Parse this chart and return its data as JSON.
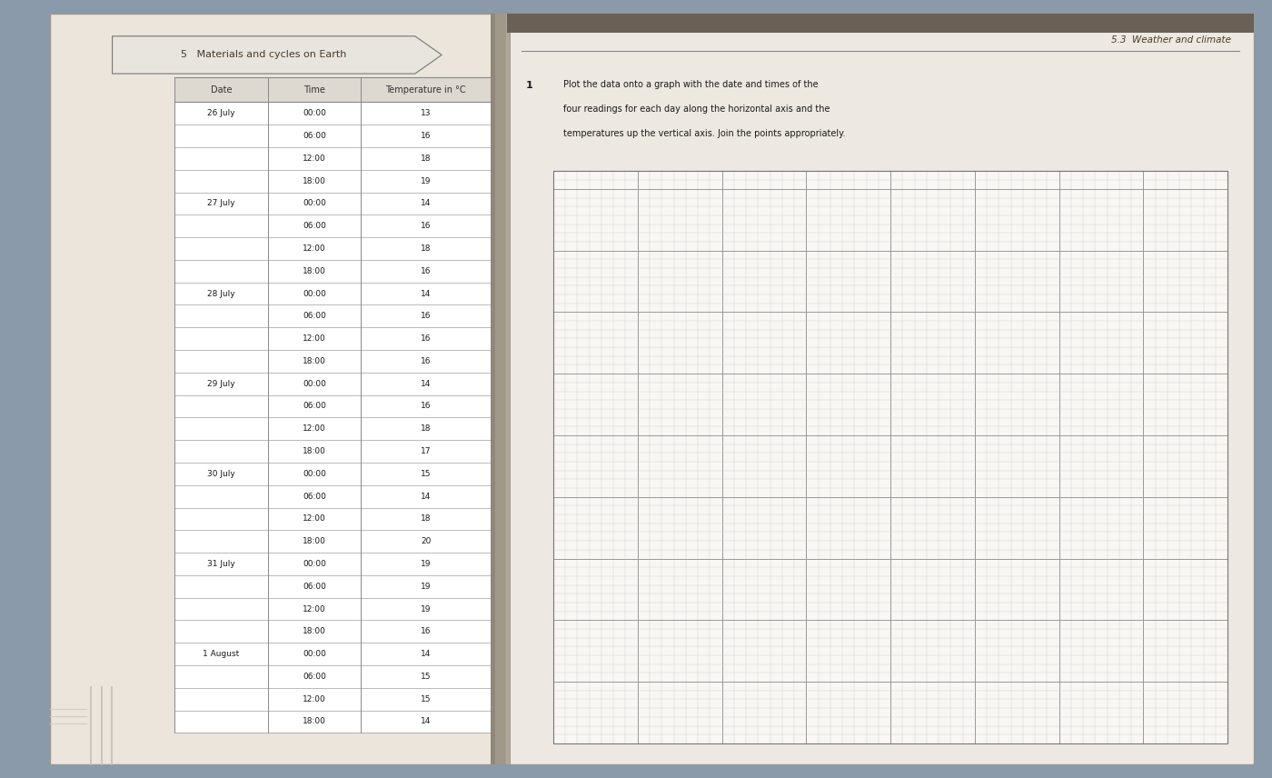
{
  "title_left": "5   Materials and cycles on Earth",
  "title_right": "5.3  Weather and climate",
  "instruction_number": "1",
  "instruction_text_lines": [
    "Plot the data onto a graph with the date and times of the",
    "four readings for each day along the horizontal axis and the",
    "temperatures up the vertical axis. Join the points appropriately."
  ],
  "table_headers": [
    "Date",
    "Time",
    "Temperature in °C"
  ],
  "table_data": [
    [
      "26 July",
      "00:00",
      "13"
    ],
    [
      "",
      "06:00",
      "16"
    ],
    [
      "",
      "12:00",
      "18"
    ],
    [
      "",
      "18:00",
      "19"
    ],
    [
      "27 July",
      "00:00",
      "14"
    ],
    [
      "",
      "06:00",
      "16"
    ],
    [
      "",
      "12:00",
      "18"
    ],
    [
      "",
      "18:00",
      "16"
    ],
    [
      "28 July",
      "00:00",
      "14"
    ],
    [
      "",
      "06:00",
      "16"
    ],
    [
      "",
      "12:00",
      "16"
    ],
    [
      "",
      "18:00",
      "16"
    ],
    [
      "29 July",
      "00:00",
      "14"
    ],
    [
      "",
      "06:00",
      "16"
    ],
    [
      "",
      "12:00",
      "18"
    ],
    [
      "",
      "18:00",
      "17"
    ],
    [
      "30 July",
      "00:00",
      "15"
    ],
    [
      "",
      "06:00",
      "14"
    ],
    [
      "",
      "12:00",
      "18"
    ],
    [
      "",
      "18:00",
      "20"
    ],
    [
      "31 July",
      "00:00",
      "19"
    ],
    [
      "",
      "06:00",
      "19"
    ],
    [
      "",
      "12:00",
      "19"
    ],
    [
      "",
      "18:00",
      "16"
    ],
    [
      "1 August",
      "00:00",
      "14"
    ],
    [
      "",
      "06:00",
      "15"
    ],
    [
      "",
      "12:00",
      "15"
    ],
    [
      "",
      "18:00",
      "14"
    ]
  ],
  "page_bg_left": "#e8e0d5",
  "page_bg_right": "#ede8e0",
  "spine_color": "#c0b8b0",
  "table_bg": "#ffffff",
  "table_header_bg": "#ddd8d0",
  "grid_fine_color": "#c5c5c5",
  "grid_coarse_color": "#999999",
  "grid_bg": "#f8f7f4",
  "text_color": "#1a1a1a",
  "header_text_color": "#333333",
  "title_color": "#4a3a2a",
  "border_color": "#888888",
  "arrow_outline": "#777777",
  "arrow_fill": "#e8e4de",
  "separator_color": "#888888"
}
